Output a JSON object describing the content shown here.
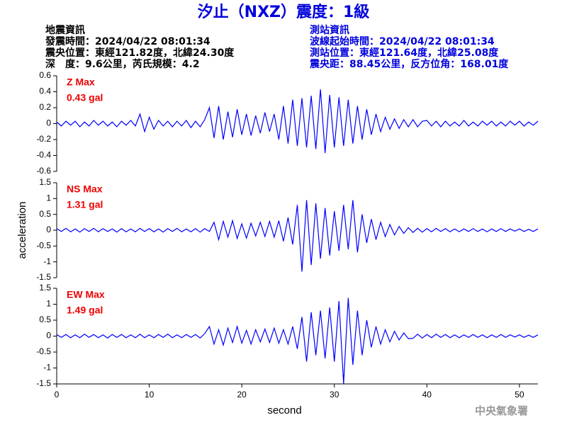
{
  "title": "汐止（NXZ）震度：1級",
  "left_info": [
    "地震資訊",
    "發震時間：2024/04/22 08:01:34",
    "震央位置：東經121.82度，北緯24.30度",
    "深　度：9.6公里，芮氏規模：4.2"
  ],
  "right_info": [
    "測站資訊",
    "波線起始時間：2024/04/22 08:01:34",
    "測站位置：東經121.64度，北緯25.08度",
    "震央距：88.45公里，反方位角：168.01度"
  ],
  "footer": "中央氣象署",
  "chart_data": [
    {
      "type": "line",
      "annotations": [
        "Z Max",
        "0.43 gal"
      ],
      "ylim": [
        -0.6,
        0.6
      ],
      "yticks": [
        0.6,
        0.4,
        0.2,
        0,
        -0.2,
        -0.4,
        -0.6
      ],
      "x": [
        0,
        0.5,
        1,
        1.5,
        2,
        2.5,
        3,
        3.5,
        4,
        4.5,
        5,
        5.5,
        6,
        6.5,
        7,
        7.5,
        8,
        8.5,
        9,
        9.5,
        10,
        10.5,
        11,
        11.5,
        12,
        12.5,
        13,
        13.5,
        14,
        14.5,
        15,
        15.5,
        16,
        16.5,
        17,
        17.5,
        18,
        18.5,
        19,
        19.5,
        20,
        20.5,
        21,
        21.5,
        22,
        22.5,
        23,
        23.5,
        24,
        24.5,
        25,
        25.5,
        26,
        26.5,
        27,
        27.5,
        28,
        28.5,
        29,
        29.5,
        30,
        30.5,
        31,
        31.5,
        32,
        32.5,
        33,
        33.5,
        34,
        34.5,
        35,
        35.5,
        36,
        36.5,
        37,
        37.5,
        38,
        38.5,
        39,
        39.5,
        40,
        40.5,
        41,
        41.5,
        42,
        42.5,
        43,
        43.5,
        44,
        44.5,
        45,
        45.5,
        46,
        46.5,
        47,
        47.5,
        48,
        48.5,
        49,
        49.5,
        50,
        50.5,
        51,
        51.5,
        52
      ],
      "series": [
        {
          "color": "#0000ff",
          "values": [
            0.02,
            -0.03,
            0.03,
            -0.02,
            0.03,
            -0.04,
            0.02,
            -0.03,
            0.04,
            -0.02,
            0.03,
            -0.03,
            0.02,
            -0.04,
            0.03,
            -0.02,
            0.04,
            -0.03,
            0.12,
            -0.1,
            0.08,
            -0.07,
            0.04,
            -0.03,
            0.03,
            -0.04,
            0.03,
            -0.03,
            0.04,
            -0.05,
            0.03,
            -0.04,
            0.05,
            0.2,
            -0.18,
            0.22,
            -0.2,
            0.15,
            -0.17,
            0.18,
            -0.14,
            0.12,
            -0.15,
            0.1,
            -0.12,
            0.14,
            -0.1,
            0.12,
            -0.2,
            0.22,
            -0.25,
            0.3,
            -0.28,
            0.32,
            -0.3,
            0.35,
            -0.32,
            0.43,
            -0.37,
            0.36,
            -0.3,
            0.33,
            -0.28,
            0.3,
            -0.25,
            0.22,
            -0.2,
            0.18,
            -0.14,
            0.12,
            -0.1,
            0.08,
            -0.07,
            0.06,
            -0.06,
            0.05,
            -0.04,
            0.05,
            -0.04,
            0.03,
            0.04,
            -0.03,
            0.03,
            -0.04,
            0.03,
            -0.03,
            0.02,
            -0.03,
            0.04,
            -0.03,
            0.02,
            -0.03,
            0.03,
            -0.02,
            0.03,
            -0.03,
            0.02,
            -0.03,
            0.03,
            -0.02,
            0.03,
            -0.03,
            0.02,
            -0.02,
            0.03
          ]
        }
      ]
    },
    {
      "type": "line",
      "annotations": [
        "NS Max",
        "1.31 gal"
      ],
      "ylabel": "acceleration",
      "ylim": [
        -1.5,
        1.5
      ],
      "yticks": [
        1.5,
        1,
        0.5,
        0,
        -0.5,
        -1,
        -1.5
      ],
      "x": [
        0,
        0.5,
        1,
        1.5,
        2,
        2.5,
        3,
        3.5,
        4,
        4.5,
        5,
        5.5,
        6,
        6.5,
        7,
        7.5,
        8,
        8.5,
        9,
        9.5,
        10,
        10.5,
        11,
        11.5,
        12,
        12.5,
        13,
        13.5,
        14,
        14.5,
        15,
        15.5,
        16,
        16.5,
        17,
        17.5,
        18,
        18.5,
        19,
        19.5,
        20,
        20.5,
        21,
        21.5,
        22,
        22.5,
        23,
        23.5,
        24,
        24.5,
        25,
        25.5,
        26,
        26.5,
        27,
        27.5,
        28,
        28.5,
        29,
        29.5,
        30,
        30.5,
        31,
        31.5,
        32,
        32.5,
        33,
        33.5,
        34,
        34.5,
        35,
        35.5,
        36,
        36.5,
        37,
        37.5,
        38,
        38.5,
        39,
        39.5,
        40,
        40.5,
        41,
        41.5,
        42,
        42.5,
        43,
        43.5,
        44,
        44.5,
        45,
        45.5,
        46,
        46.5,
        47,
        47.5,
        48,
        48.5,
        49,
        49.5,
        50,
        50.5,
        51,
        51.5,
        52
      ],
      "series": [
        {
          "color": "#0000ff",
          "values": [
            0.05,
            -0.04,
            0.06,
            -0.05,
            0.04,
            -0.06,
            0.05,
            -0.04,
            0.06,
            -0.05,
            0.05,
            -0.04,
            0.04,
            -0.06,
            0.05,
            -0.05,
            0.04,
            -0.05,
            0.06,
            -0.04,
            0.05,
            -0.05,
            0.04,
            -0.06,
            0.05,
            -0.04,
            0.06,
            -0.05,
            0.04,
            -0.05,
            0.05,
            -0.06,
            0.05,
            -0.04,
            0.25,
            -0.3,
            0.28,
            -0.22,
            0.3,
            -0.26,
            0.2,
            -0.25,
            0.22,
            -0.18,
            0.25,
            -0.2,
            0.28,
            -0.22,
            0.3,
            -0.35,
            0.4,
            -0.45,
            0.8,
            -1.31,
            0.95,
            -1.1,
            0.85,
            -0.9,
            0.7,
            -0.8,
            0.6,
            -0.65,
            0.8,
            -0.6,
            0.95,
            -0.7,
            0.5,
            -0.4,
            0.35,
            -0.3,
            0.25,
            -0.2,
            0.18,
            -0.15,
            0.12,
            -0.1,
            0.08,
            -0.07,
            0.06,
            -0.06,
            0.05,
            -0.05,
            0.06,
            -0.04,
            0.05,
            -0.05,
            0.04,
            -0.05,
            0.04,
            -0.04,
            0.05,
            -0.04,
            0.04,
            -0.05,
            0.04,
            -0.04,
            0.05,
            -0.04,
            0.04,
            -0.03,
            0.04,
            -0.04,
            0.03,
            -0.04,
            0.04
          ]
        }
      ]
    },
    {
      "type": "line",
      "annotations": [
        "EW Max",
        "1.49 gal"
      ],
      "xlabel": "second",
      "xlim": [
        0,
        52
      ],
      "xticks": [
        0,
        10,
        20,
        30,
        40,
        50
      ],
      "ylim": [
        -1.5,
        1.5
      ],
      "yticks": [
        1.5,
        1,
        0.5,
        0,
        -0.5,
        -1,
        -1.5
      ],
      "x": [
        0,
        0.5,
        1,
        1.5,
        2,
        2.5,
        3,
        3.5,
        4,
        4.5,
        5,
        5.5,
        6,
        6.5,
        7,
        7.5,
        8,
        8.5,
        9,
        9.5,
        10,
        10.5,
        11,
        11.5,
        12,
        12.5,
        13,
        13.5,
        14,
        14.5,
        15,
        15.5,
        16,
        16.5,
        17,
        17.5,
        18,
        18.5,
        19,
        19.5,
        20,
        20.5,
        21,
        21.5,
        22,
        22.5,
        23,
        23.5,
        24,
        24.5,
        25,
        25.5,
        26,
        26.5,
        27,
        27.5,
        28,
        28.5,
        29,
        29.5,
        30,
        30.5,
        31,
        31.5,
        32,
        32.5,
        33,
        33.5,
        34,
        34.5,
        35,
        35.5,
        36,
        36.5,
        37,
        37.5,
        38,
        38.5,
        39,
        39.5,
        40,
        40.5,
        41,
        41.5,
        42,
        42.5,
        43,
        43.5,
        44,
        44.5,
        45,
        45.5,
        46,
        46.5,
        47,
        47.5,
        48,
        48.5,
        49,
        49.5,
        50,
        50.5,
        51,
        51.5,
        52
      ],
      "series": [
        {
          "color": "#0000ff",
          "values": [
            0.05,
            -0.04,
            0.05,
            -0.05,
            0.04,
            -0.05,
            0.06,
            -0.04,
            0.05,
            -0.05,
            0.04,
            -0.06,
            0.05,
            -0.04,
            0.05,
            -0.05,
            0.04,
            -0.05,
            0.06,
            -0.05,
            0.04,
            -0.05,
            0.05,
            -0.04,
            0.06,
            -0.05,
            0.04,
            -0.05,
            0.05,
            -0.04,
            0.05,
            -0.06,
            0.08,
            0.3,
            -0.25,
            0.2,
            -0.28,
            0.25,
            -0.2,
            0.3,
            -0.22,
            0.18,
            -0.25,
            0.2,
            -0.18,
            0.22,
            -0.2,
            0.25,
            -0.22,
            0.2,
            -0.25,
            0.3,
            -0.4,
            0.6,
            -0.8,
            0.75,
            -0.6,
            0.8,
            -0.7,
            0.9,
            -0.8,
            1.1,
            -1.49,
            1.2,
            -0.9,
            0.8,
            -0.6,
            0.5,
            -0.35,
            0.3,
            -0.25,
            0.2,
            -0.18,
            0.15,
            -0.12,
            0.1,
            -0.08,
            -0.07,
            0.06,
            -0.06,
            0.05,
            -0.05,
            0.06,
            -0.04,
            0.05,
            -0.05,
            0.04,
            -0.05,
            0.04,
            -0.04,
            0.05,
            -0.04,
            0.04,
            -0.05,
            0.04,
            -0.04,
            0.05,
            -0.04,
            0.04,
            -0.03,
            0.04,
            -0.04,
            0.03,
            -0.04,
            0.04
          ]
        }
      ]
    }
  ]
}
